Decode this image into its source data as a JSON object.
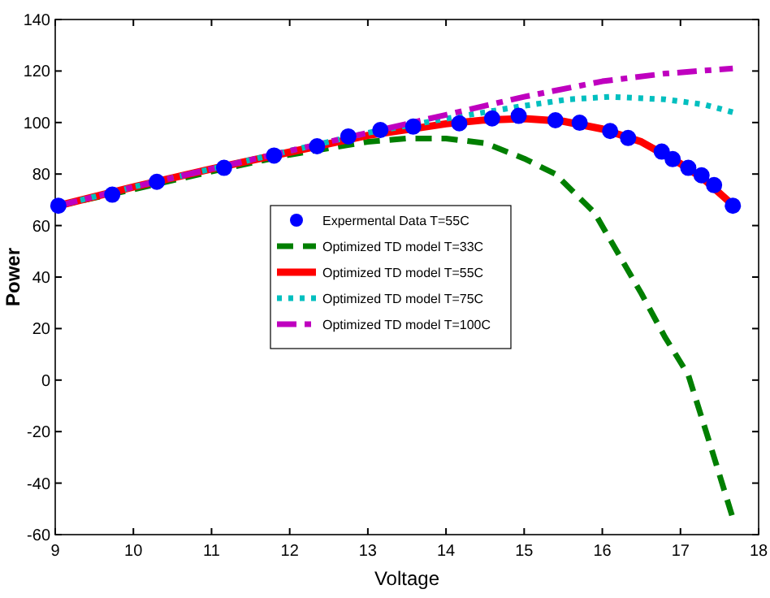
{
  "chart_data": {
    "type": "line",
    "xlabel": "Voltage",
    "ylabel": "Power",
    "xlim": [
      9,
      18
    ],
    "ylim": [
      -60,
      140
    ],
    "xticks": [
      9,
      10,
      11,
      12,
      13,
      14,
      15,
      16,
      17,
      18
    ],
    "yticks": [
      -60,
      -40,
      -20,
      0,
      20,
      40,
      60,
      80,
      100,
      120,
      140
    ],
    "grid": false,
    "legend": "center",
    "series": [
      {
        "name": "Expermental Data T=55C",
        "type": "scatter",
        "marker": "circle",
        "color": "#0000ff",
        "x": [
          9.04,
          9.73,
          10.3,
          11.16,
          11.8,
          12.35,
          12.75,
          13.16,
          13.58,
          14.17,
          14.59,
          14.93,
          15.4,
          15.71,
          16.1,
          16.33,
          16.76,
          16.9,
          17.1,
          17.27,
          17.43,
          17.67
        ],
        "values": [
          67.7,
          72,
          77,
          82.4,
          87.2,
          90.8,
          94.6,
          97.1,
          98.4,
          99.7,
          101.6,
          102.6,
          100.9,
          99.9,
          96.7,
          94,
          88.7,
          85.8,
          82.4,
          79.5,
          75.7,
          67.7
        ]
      },
      {
        "name": "Optimized TD model T=33C",
        "line_style": "dashed",
        "color": "#007f00",
        "x": [
          9.04,
          10,
          11,
          12,
          12.5,
          13,
          13.5,
          14,
          14.5,
          15,
          15.4,
          15.9,
          16.5,
          16.8,
          17.1,
          17.4,
          17.67
        ],
        "values": [
          67.7,
          74,
          81,
          87.5,
          90,
          92.5,
          93.8,
          93.8,
          92,
          86,
          80,
          65,
          33.6,
          16.8,
          2,
          -27,
          -53.6
        ]
      },
      {
        "name": "Optimized TD model T=55C",
        "line_style": "solid",
        "color": "#ff0000",
        "x": [
          9.04,
          10,
          11,
          12,
          13,
          14,
          14.5,
          15,
          15.5,
          16,
          16.5,
          17,
          17.3,
          17.67
        ],
        "values": [
          67.7,
          75,
          82,
          88.5,
          95,
          99.5,
          101,
          101.5,
          100.5,
          97.5,
          92.5,
          84,
          78,
          68
        ]
      },
      {
        "name": "Optimized TD model T=75C",
        "line_style": "dotted",
        "color": "#00bfbf",
        "x": [
          9.04,
          10,
          11,
          12,
          13,
          14,
          14.5,
          15,
          15.57,
          16.1,
          16.8,
          17.3,
          17.67
        ],
        "values": [
          67.7,
          75,
          82,
          89,
          96,
          101.5,
          104,
          106.5,
          109,
          110,
          109,
          107,
          104
        ]
      },
      {
        "name": "Optimized TD model T=100C",
        "line_style": "dashdot",
        "color": "#bf00bf",
        "x": [
          9.04,
          10,
          11,
          12,
          13,
          14,
          15,
          16,
          16.8,
          17.67
        ],
        "values": [
          67.7,
          75,
          82,
          89,
          96,
          103,
          110,
          116,
          119,
          121
        ]
      }
    ]
  }
}
